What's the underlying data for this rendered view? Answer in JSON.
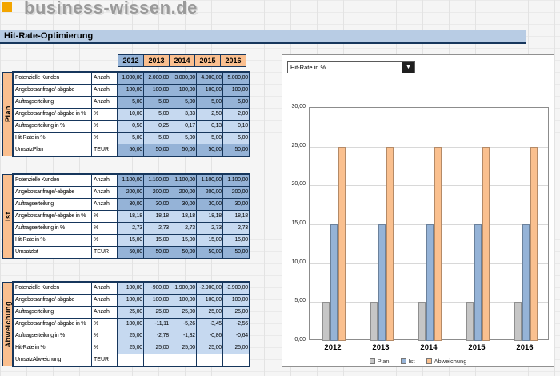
{
  "brand": {
    "name": "business-wissen.de"
  },
  "title": "Hit-Rate-Optimierung",
  "colors": {
    "logo_orange": "#f3a500",
    "header_orange": "#fabf8f",
    "header_blue": "#95b3d7",
    "cell_blue_medium": "#95b3d7",
    "cell_blue_light": "#c6d9f0",
    "title_band_blue": "#b8cce4",
    "navy_border": "#16365c",
    "bar_gray": "#c6c6c6",
    "bar_blue": "#95b3d7",
    "bar_orange": "#fac08f"
  },
  "table": {
    "years": [
      "2012",
      "2013",
      "2014",
      "2015",
      "2016"
    ],
    "sections": [
      {
        "label": "Plan",
        "rows": [
          {
            "name": "Potenzielle Kunden",
            "unit": "Anzahl",
            "tone": "medium",
            "values": [
              "1.000,00",
              "2.000,00",
              "3.000,00",
              "4.000,00",
              "5.000,00"
            ]
          },
          {
            "name": "Angebotsanfrage/-abgabe",
            "unit": "Anzahl",
            "tone": "medium",
            "values": [
              "100,00",
              "100,00",
              "100,00",
              "100,00",
              "100,00"
            ]
          },
          {
            "name": "Auftragserteilung",
            "unit": "Anzahl",
            "tone": "medium",
            "values": [
              "5,00",
              "5,00",
              "5,00",
              "5,00",
              "5,00"
            ]
          },
          {
            "name": "Angebotsanfrage/-abgabe in %",
            "unit": "%",
            "tone": "light",
            "values": [
              "10,00",
              "5,00",
              "3,33",
              "2,50",
              "2,00"
            ]
          },
          {
            "name": "Auftragserteilung in %",
            "unit": "%",
            "tone": "light",
            "values": [
              "0,50",
              "0,25",
              "0,17",
              "0,13",
              "0,10"
            ]
          },
          {
            "name": "Hit-Rate in %",
            "unit": "%",
            "tone": "light",
            "values": [
              "5,00",
              "5,00",
              "5,00",
              "5,00",
              "5,00"
            ]
          },
          {
            "name": "UmsatzPlan",
            "unit": "TEUR",
            "tone": "medium",
            "values": [
              "50,00",
              "50,00",
              "50,00",
              "50,00",
              "50,00"
            ]
          }
        ]
      },
      {
        "label": "Ist",
        "rows": [
          {
            "name": "Potenzielle Kunden",
            "unit": "Anzahl",
            "tone": "medium",
            "values": [
              "1.100,00",
              "1.100,00",
              "1.100,00",
              "1.100,00",
              "1.100,00"
            ]
          },
          {
            "name": "Angebotsanfrage/-abgabe",
            "unit": "Anzahl",
            "tone": "medium",
            "values": [
              "200,00",
              "200,00",
              "200,00",
              "200,00",
              "200,00"
            ]
          },
          {
            "name": "Auftragserteilung",
            "unit": "Anzahl",
            "tone": "medium",
            "values": [
              "30,00",
              "30,00",
              "30,00",
              "30,00",
              "30,00"
            ]
          },
          {
            "name": "Angebotsanfrage/-abgabe in %",
            "unit": "%",
            "tone": "light",
            "values": [
              "18,18",
              "18,18",
              "18,18",
              "18,18",
              "18,18"
            ]
          },
          {
            "name": "Auftragserteilung in %",
            "unit": "%",
            "tone": "light",
            "values": [
              "2,73",
              "2,73",
              "2,73",
              "2,73",
              "2,73"
            ]
          },
          {
            "name": "Hit-Rate in %",
            "unit": "%",
            "tone": "light",
            "values": [
              "15,00",
              "15,00",
              "15,00",
              "15,00",
              "15,00"
            ]
          },
          {
            "name": "UmsatzIst",
            "unit": "TEUR",
            "tone": "medium",
            "values": [
              "50,00",
              "50,00",
              "50,00",
              "50,00",
              "50,00"
            ]
          }
        ]
      },
      {
        "label": "Abweichung",
        "rows": [
          {
            "name": "Potenzielle Kunden",
            "unit": "Anzahl",
            "tone": "light",
            "values": [
              "100,00",
              "-900,00",
              "-1.900,00",
              "-2.900,00",
              "-3.900,00"
            ]
          },
          {
            "name": "Angebotsanfrage/-abgabe",
            "unit": "Anzahl",
            "tone": "light",
            "values": [
              "100,00",
              "100,00",
              "100,00",
              "100,00",
              "100,00"
            ]
          },
          {
            "name": "Auftragserteilung",
            "unit": "Anzahl",
            "tone": "light",
            "values": [
              "25,00",
              "25,00",
              "25,00",
              "25,00",
              "25,00"
            ]
          },
          {
            "name": "Angebotsanfrage/-abgabe in %",
            "unit": "%",
            "tone": "light",
            "values": [
              "100,00",
              "-11,11",
              "-5,26",
              "-3,45",
              "-2,56"
            ]
          },
          {
            "name": "Auftragserteilung in %",
            "unit": "%",
            "tone": "light",
            "values": [
              "25,00",
              "-2,78",
              "-1,32",
              "-0,86",
              "-0,64"
            ]
          },
          {
            "name": "Hit-Rate in %",
            "unit": "%",
            "tone": "light",
            "values": [
              "25,00",
              "25,00",
              "25,00",
              "25,00",
              "25,00"
            ]
          },
          {
            "name": "UmsatzAbweichung",
            "unit": "TEUR",
            "tone": "empty",
            "values": [
              "",
              "",
              "",
              "",
              ""
            ]
          }
        ]
      }
    ]
  },
  "chart": {
    "metric_selector": "Hit-Rate in %",
    "legend": [
      "Plan",
      "Ist",
      "Abweichung"
    ]
  },
  "chart_data": {
    "type": "bar",
    "title": "Hit-Rate in %",
    "categories": [
      "2012",
      "2013",
      "2014",
      "2015",
      "2016"
    ],
    "series": [
      {
        "name": "Plan",
        "color": "#c6c6c6",
        "values": [
          5,
          5,
          5,
          5,
          5
        ]
      },
      {
        "name": "Ist",
        "color": "#95b3d7",
        "values": [
          15,
          15,
          15,
          15,
          15
        ]
      },
      {
        "name": "Abweichung",
        "color": "#fac08f",
        "values": [
          25,
          25,
          25,
          25,
          25
        ]
      }
    ],
    "xlabel": "",
    "ylabel": "",
    "ylim": [
      0,
      30
    ],
    "ytick_step": 5,
    "ytick_labels": [
      "30,00",
      "25,00",
      "20,00",
      "15,00",
      "10,00",
      "5,00",
      "0,00"
    ],
    "grid": true,
    "legend_position": "bottom"
  }
}
